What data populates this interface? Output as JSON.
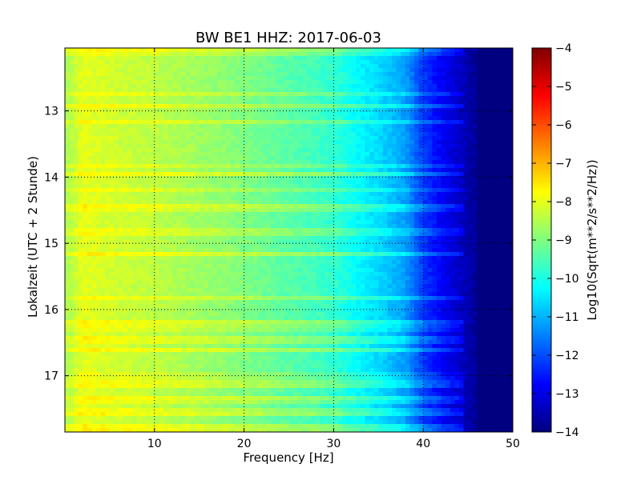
{
  "chart_data": {
    "type": "heatmap",
    "title": "BW BE1 HHZ: 2017-06-03",
    "xlabel": "Frequency [Hz]",
    "ylabel": "Lokalzeit (UTC + 2 Stunde)",
    "xlim": [
      0,
      50
    ],
    "ylim": [
      17.85,
      12.05
    ],
    "x_ticks": [
      10,
      20,
      30,
      40,
      50
    ],
    "y_ticks": [
      13,
      14,
      15,
      16,
      17
    ],
    "grid": true,
    "colormap": "jet",
    "colorbar": {
      "label": "Log10(Sqrt(m**2/s**2/Hz))",
      "range": [
        -14,
        -4
      ],
      "ticks": [
        -4,
        -5,
        -6,
        -7,
        -8,
        -9,
        -10,
        -11,
        -12,
        -13,
        -14
      ]
    },
    "z_profile": {
      "frequency_hz": [
        0.5,
        2,
        5,
        10,
        15,
        20,
        25,
        28,
        30,
        33,
        35,
        38,
        40,
        42,
        44,
        46,
        50
      ],
      "log10_psd": [
        -8.5,
        -8.0,
        -8.2,
        -8.4,
        -8.7,
        -9.0,
        -9.4,
        -9.6,
        -9.8,
        -10.3,
        -10.6,
        -11.2,
        -12.2,
        -12.8,
        -13.3,
        -13.8,
        -14.0
      ]
    }
  }
}
